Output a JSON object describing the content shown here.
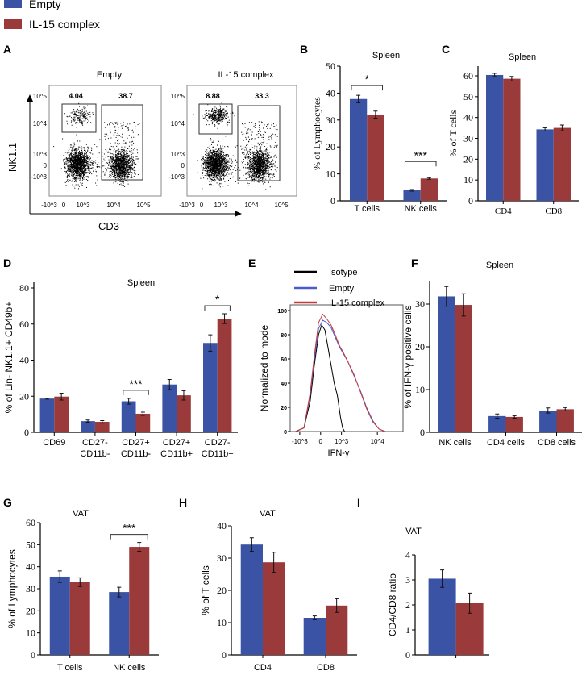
{
  "legend": {
    "items": [
      {
        "label": "Empty",
        "color": "#3a53a4"
      },
      {
        "label": "IL-15 complex",
        "color": "#9b3a3a"
      }
    ]
  },
  "panel_letters": [
    "A",
    "B",
    "C",
    "D",
    "E",
    "F",
    "G",
    "H",
    "I"
  ],
  "flow": {
    "letter": "A",
    "y_axis_label": "NK1.1",
    "x_axis_label": "CD3",
    "y_ticks": [
      "10^5",
      "10^4",
      "10^3",
      "0",
      "-10^3"
    ],
    "x_ticks": [
      "-10^3",
      "0",
      "10^3",
      "10^4",
      "10^5"
    ],
    "plots": [
      {
        "title": "Empty",
        "nk_gate": "4.04",
        "t_gate": "38.7"
      },
      {
        "title": "IL-15 complex",
        "nk_gate": "8.88",
        "t_gate": "33.3"
      }
    ]
  },
  "chart_data": [
    {
      "id": "B",
      "type": "bar",
      "title": "Spleen",
      "ylabel": "% of Lymphocytes",
      "categories": [
        "T cells",
        "NK cells"
      ],
      "ylim": [
        0,
        50
      ],
      "yticks": [
        0,
        10,
        20,
        30,
        40,
        50
      ],
      "series": [
        {
          "name": "Empty",
          "values": [
            37.8,
            3.9
          ],
          "errors": [
            1.4,
            0.3
          ]
        },
        {
          "name": "IL-15 complex",
          "values": [
            32,
            8.3
          ],
          "errors": [
            1.3,
            0.3
          ]
        }
      ],
      "significance": [
        {
          "category": 0,
          "label": "*"
        },
        {
          "category": 1,
          "label": "***"
        }
      ]
    },
    {
      "id": "C",
      "type": "bar",
      "title": "Spleen",
      "ylabel": "% of T cells",
      "categories": [
        "CD4",
        "CD8"
      ],
      "ylim": [
        0,
        70
      ],
      "yticks": [
        0,
        10,
        20,
        30,
        40,
        50,
        60
      ],
      "series": [
        {
          "name": "Empty",
          "values": [
            60.4,
            34.3
          ],
          "errors": [
            0.8,
            0.8
          ]
        },
        {
          "name": "IL-15 complex",
          "values": [
            58.6,
            35
          ],
          "errors": [
            1.1,
            1.4
          ]
        }
      ],
      "significance": []
    },
    {
      "id": "D",
      "type": "bar",
      "title": "Spleen",
      "ylabel": "% of Lin- NK1.1+ CD49b+",
      "categories": [
        "CD69",
        "CD27-\nCD11b-",
        "CD27+\nCD11b-",
        "CD27+\nCD11b+",
        "CD27-\nCD11b+"
      ],
      "ylim": [
        0,
        80
      ],
      "yticks": [
        0,
        20,
        40,
        60,
        80
      ],
      "series": [
        {
          "name": "Empty",
          "values": [
            18.7,
            6.2,
            17.2,
            26.5,
            49.5
          ],
          "errors": [
            0.3,
            0.6,
            1.6,
            2.8,
            4.5
          ]
        },
        {
          "name": "IL-15 complex",
          "values": [
            19.8,
            5.8,
            10.3,
            20.5,
            63
          ],
          "errors": [
            1.9,
            0.7,
            0.9,
            2.6,
            2.7
          ]
        }
      ],
      "significance": [
        {
          "category": 2,
          "label": "***"
        },
        {
          "category": 4,
          "label": "*"
        }
      ]
    },
    {
      "id": "E",
      "type": "line",
      "ylabel": "Normalized to mode",
      "xlabel": "IFN-γ",
      "ylim": [
        0,
        100
      ],
      "yticks": [
        0,
        20,
        40,
        60,
        80,
        100
      ],
      "xlim": [
        -1.46,
        3.95
      ],
      "xticks": [
        {
          "value": -1,
          "label": "-10^3"
        },
        {
          "value": 0,
          "label": "0"
        },
        {
          "value": 1,
          "label": "10^3"
        },
        {
          "value": 2.72,
          "label": "10^4"
        }
      ],
      "series": [
        {
          "name": "Isotype",
          "color": "#000000",
          "x": [
            -1.2,
            -0.8,
            -0.5,
            -0.3,
            -0.1,
            0.05,
            0.2,
            0.35,
            0.5,
            0.65,
            0.8,
            0.95,
            1.05,
            1.15
          ],
          "y": [
            0,
            3,
            25,
            55,
            80,
            88,
            84,
            70,
            55,
            40,
            30,
            12,
            3,
            0
          ]
        },
        {
          "name": "Empty",
          "color": "#4a5bd0",
          "x": [
            -1.2,
            -0.8,
            -0.5,
            -0.3,
            -0.1,
            0.1,
            0.3,
            0.5,
            0.7,
            0.9,
            1.1,
            1.3,
            1.6,
            1.9,
            2.2,
            2.5,
            2.8,
            3.1
          ],
          "y": [
            0,
            3,
            30,
            60,
            85,
            92,
            90,
            86,
            78,
            70,
            64,
            58,
            46,
            34,
            20,
            9,
            2,
            0
          ]
        },
        {
          "name": "IL-15 complex",
          "color": "#c83a3a",
          "x": [
            -1.2,
            -0.8,
            -0.5,
            -0.3,
            -0.1,
            0.1,
            0.3,
            0.5,
            0.7,
            0.9,
            1.1,
            1.3,
            1.6,
            1.9,
            2.2,
            2.5,
            2.8,
            3.1
          ],
          "y": [
            0,
            3,
            32,
            63,
            90,
            97,
            93,
            88,
            80,
            71,
            65,
            58,
            47,
            33,
            19,
            8,
            2,
            0
          ]
        }
      ]
    },
    {
      "id": "F",
      "type": "bar",
      "title": "Spleen",
      "ylabel": "% of IFN-γ positive cells",
      "categories": [
        "NK cells",
        "CD4 cells",
        "CD8 cells"
      ],
      "ylim": [
        0,
        35
      ],
      "yticks": [
        0,
        10,
        20,
        30
      ],
      "series": [
        {
          "name": "Empty",
          "values": [
            31.8,
            3.8,
            5.1
          ],
          "errors": [
            2.3,
            0.5,
            0.6
          ]
        },
        {
          "name": "IL-15 complex",
          "values": [
            29.8,
            3.6,
            5.4
          ],
          "errors": [
            2.6,
            0.3,
            0.4
          ]
        }
      ],
      "significance": []
    },
    {
      "id": "G",
      "type": "bar",
      "title": "VAT",
      "ylabel": "% of Lymphocytes",
      "categories": [
        "T cells",
        "NK cells"
      ],
      "ylim": [
        0,
        60
      ],
      "yticks": [
        0,
        10,
        20,
        30,
        40,
        50,
        60
      ],
      "series": [
        {
          "name": "Empty",
          "values": [
            35.5,
            28.5
          ],
          "errors": [
            2.6,
            2.2
          ]
        },
        {
          "name": "IL-15 complex",
          "values": [
            33,
            49
          ],
          "errors": [
            2,
            2
          ]
        }
      ],
      "significance": [
        {
          "category": 1,
          "label": "***"
        }
      ]
    },
    {
      "id": "H",
      "type": "bar",
      "title": "VAT",
      "ylabel": "% of T cells",
      "categories": [
        "CD4",
        "CD8"
      ],
      "ylim": [
        0,
        40
      ],
      "yticks": [
        0,
        10,
        20,
        30,
        40
      ],
      "series": [
        {
          "name": "Empty",
          "values": [
            34.2,
            11.5
          ],
          "errors": [
            2.1,
            0.6
          ]
        },
        {
          "name": "IL-15 complex",
          "values": [
            28.7,
            15.3
          ],
          "errors": [
            3.1,
            2.1
          ]
        }
      ],
      "significance": []
    },
    {
      "id": "I",
      "type": "bar",
      "title": "VAT",
      "ylabel": "CD4/CD8 ratio",
      "categories": [
        ""
      ],
      "ylim": [
        0,
        4
      ],
      "yticks": [
        0,
        1,
        2,
        3,
        4
      ],
      "series": [
        {
          "name": "Empty",
          "values": [
            3.05
          ],
          "errors": [
            0.35
          ]
        },
        {
          "name": "IL-15 complex",
          "values": [
            2.07
          ],
          "errors": [
            0.4
          ]
        }
      ],
      "significance": []
    }
  ]
}
